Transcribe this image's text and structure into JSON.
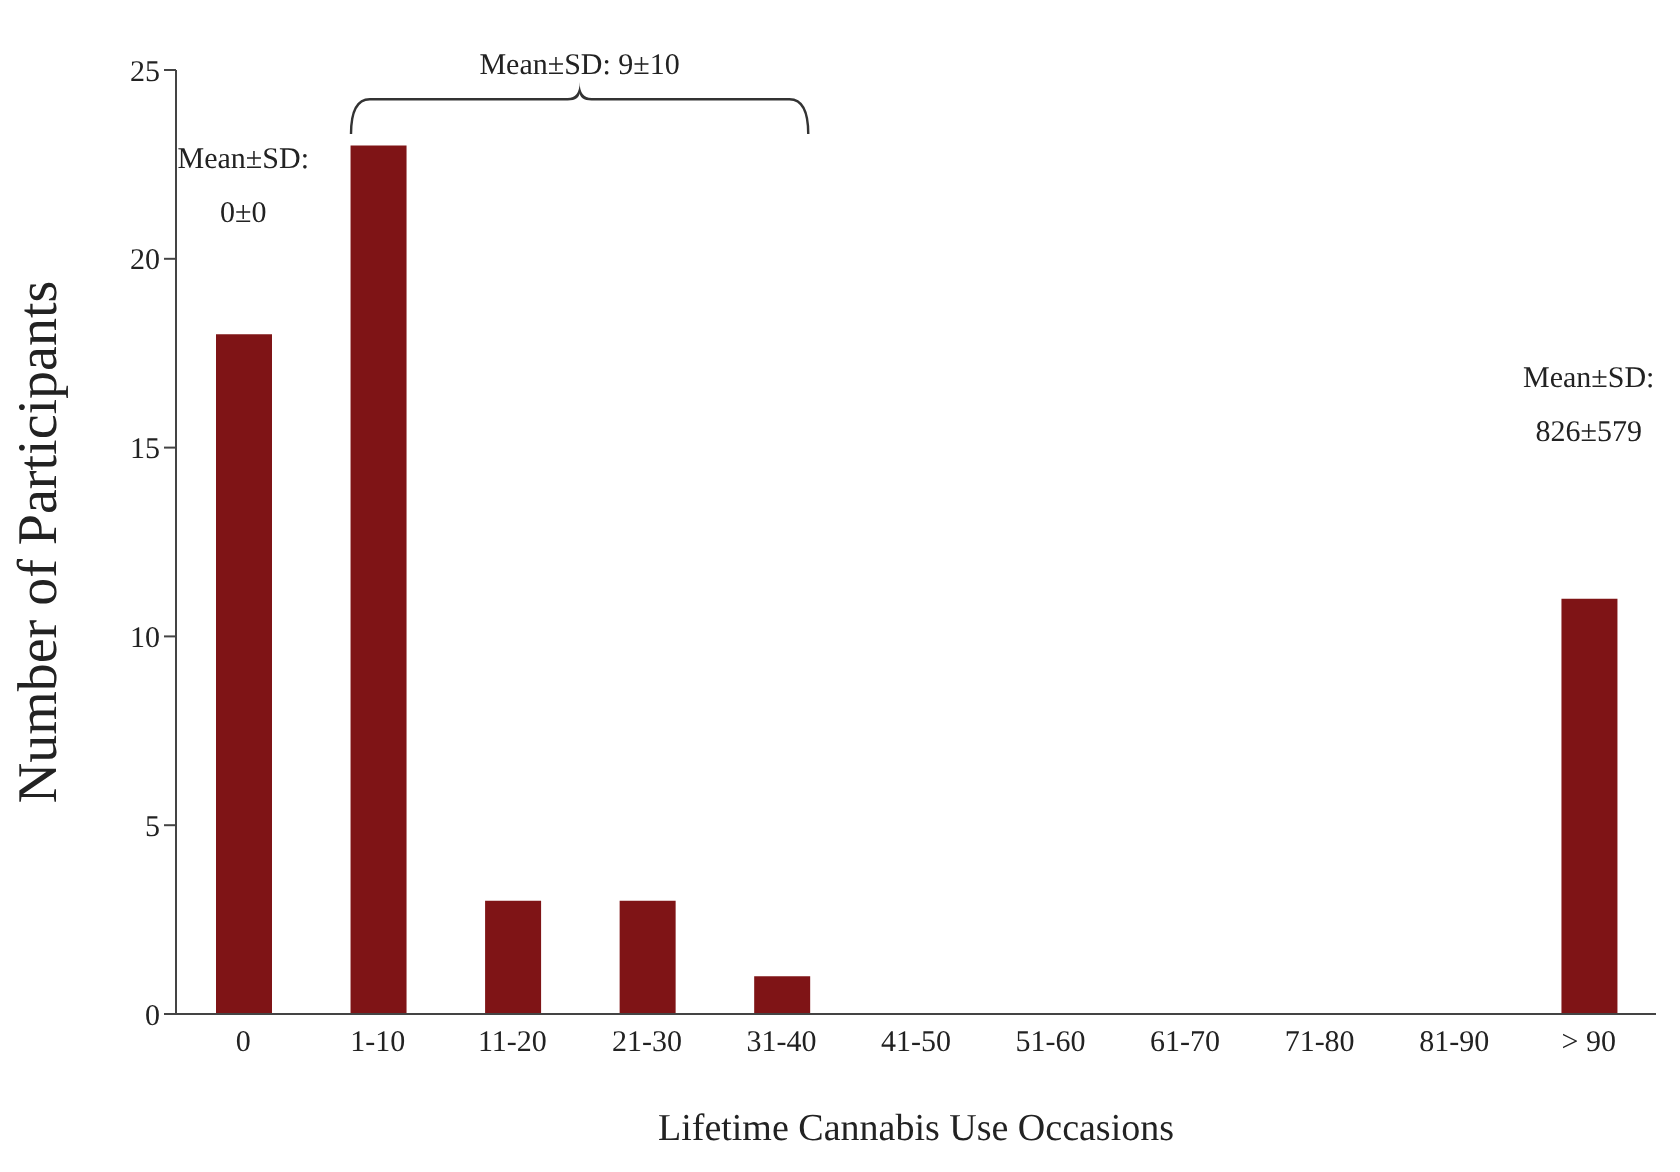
{
  "chart_data": {
    "type": "bar",
    "xlabel": "Lifetime Cannabis Use Occasions",
    "ylabel": "Number of Participants",
    "categories": [
      "0",
      "1-10",
      "11-20",
      "21-30",
      "31-40",
      "41-50",
      "51-60",
      "61-70",
      "71-80",
      "81-90",
      "> 90"
    ],
    "values": [
      18,
      23,
      3,
      3,
      1,
      0,
      0,
      0,
      0,
      0,
      11
    ],
    "color": "#7f1416",
    "ylim": [
      0,
      25
    ],
    "yticks": [
      0,
      5,
      10,
      15,
      20,
      25
    ],
    "annotations": [
      "Mean±SD:\n0±0",
      "Mean±SD: 9±10",
      "Mean±SD:\n826±579"
    ]
  }
}
